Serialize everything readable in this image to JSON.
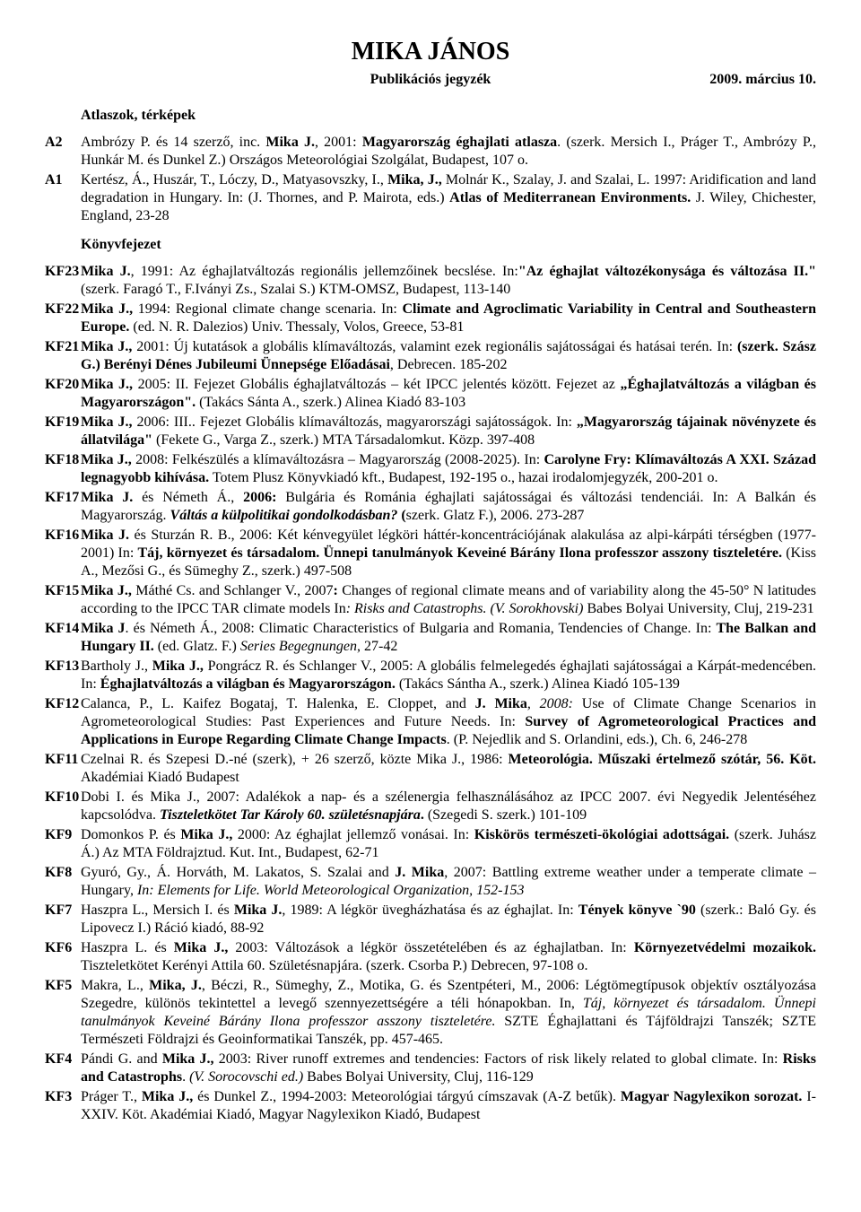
{
  "header": {
    "title": "MIKA JÁNOS",
    "subtitle": "Publikációs jegyzék",
    "date": "2009. március 10."
  },
  "section1": {
    "heading": "Atlaszok, térképek",
    "entries": [
      {
        "code": "A2",
        "html": "Ambrózy P. és 14 szerző, inc. <span class='b'>Mika J.</span>, 2001: <span class='b'>Magyarország éghajlati atlasza</span>. (szerk. Mersich I., Práger T., Ambrózy P., Hunkár M. és Dunkel Z.) Országos Meteorológiai Szolgálat, Budapest, 107 o."
      },
      {
        "code": "A1",
        "html": "Kertész, Á., Huszár, T., Lóczy, D., Matyasovszky, I., <span class='b'>Mika, J.,</span> Molnár K., Szalay, J. and Szalai, L. 1997: Aridification and land degradation in Hungary. In: (J. Thornes, and P. Mairota, eds.) <span class='b'>Atlas of Mediterranean Environments.</span> J. Wiley, Chichester, England, 23-28"
      }
    ]
  },
  "section2": {
    "heading": "Könyvfejezet",
    "entries": [
      {
        "code": "KF23",
        "html": "<span class='b'>Mika J.</span>, 1991: Az éghajlatváltozás regionális jellemzőinek becslése. In:<span class='b'>\"Az éghajlat változékonysága és változása II.\"</span> (szerk. Faragó T., F.Iványi Zs., Szalai S.) KTM-OMSZ, Budapest, 113-140"
      },
      {
        "code": "KF22",
        "html": "<span class='b'>Mika J.,</span> 1994: Regional climate change scenaria. In: <span class='b'>Climate and Agroclimatic Variability in Central and Southeastern Europe.</span> (ed. N. R. Dalezios) Univ. Thessaly, Volos, Greece, 53-81"
      },
      {
        "code": "KF21",
        "html": "<span class='b'>Mika J.,</span> 2001: Új kutatások a globális klímaváltozás, valamint ezek regionális sajátosságai és hatásai terén. In: <span class='b'>(szerk. Szász G.) Berényi Dénes Jubileumi Ünnepsége Előadásai</span>, Debrecen. 185-202"
      },
      {
        "code": "KF20",
        "html": "<span class='b'>Mika J.,</span> 2005: II. Fejezet Globális éghajlatváltozás – két IPCC jelentés között. Fejezet az <span class='b'>„Éghajlatváltozás a világban és Magyarországon\".</span> (Takács Sánta A., szerk.) Alinea Kiadó 83-103"
      },
      {
        "code": "KF19",
        "html": "<span class='b'>Mika J.,</span> 2006: III.. Fejezet Globális klímaváltozás, magyarországi sajátosságok. In: <span class='b'>„Magyarország tájainak növényzete és állatvilága\"</span> (Fekete G., Varga Z., szerk.) MTA Társadalomkut. Közp. 397-408"
      },
      {
        "code": "KF18",
        "html": "<span class='b'>Mika J.,</span> 2008: Felkészülés a klímaváltozásra – Magyarország (2008-2025). In: <span class='b'>Carolyne Fry:  Klímaváltozás A XXI. Század legnagyobb kihívása.</span> Totem Plusz Könyvkiadó kft., Budapest, 192-195 o., hazai irodalomjegyzék, 200-201 o."
      },
      {
        "code": "KF17",
        "html": "<span class='b'>Mika J.</span> és Németh Á., <span class='b'>2006:</span> Bulgária és Románia éghajlati sajátosságai és változási tendenciái. In: A Balkán és Magyarország. <span class='b i'>Váltás a külpolitikai gondolkodásban?</span> <span class='b'>(</span>szerk. Glatz F.), 2006. 273-287"
      },
      {
        "code": "KF16",
        "html": "<span class='b'>Mika J.</span> és Sturzán R. B., 2006: Két kénvegyület légköri háttér-koncentrációjának alakulása az alpi-kárpáti térségben (1977-2001) In: <span class='b'>Táj, környezet és társadalom. Ünnepi tanulmányok Keveiné Bárány Ilona professzor asszony tiszteletére.</span> (Kiss A., Mezősi G., és Sümeghy Z., szerk.) 497-508"
      },
      {
        "code": "KF15",
        "html": "<span class='b'>Mika J.,</span> Máthé Cs. and Schlanger V., 2007<span class='b'>:</span> Changes of regional climate means and of variability along the 45-50° N latitudes according to the IPCC TAR climate models In<span class='i'>: Risks and Catastrophs. (V. Sorokhovski)</span> Babes Bolyai University, Cluj, 219-231"
      },
      {
        "code": "KF14",
        "html": "<span class='b'>Mika J</span>. és Németh Á., 2008: Climatic Characteristics of Bulgaria and Romania, Tendencies of Change. In: <span class='b'>The Balkan and Hungary II.</span> (ed. Glatz. F.) <span class='i'>Series Begegnungen</span>, 27-42"
      },
      {
        "code": "KF13",
        "html": "Bartholy J., <span class='b'>Mika J.,</span> Pongrácz R. és Schlanger V., 2005: A globális felmelegedés éghajlati sajátosságai a Kárpát-medencében. In: <span class='b'>Éghajlatváltozás a világban és Magyarországon.</span> (Takács Sántha A., szerk.) Alinea Kiadó 105-139"
      },
      {
        "code": "KF12",
        "html": "Calanca, P., L. Kaifez Bogataj, T. Halenka, E. Cloppet, and <span class='b'>J. Mika</span><span class='i'>, 2008:</span> Use of Climate Change Scenarios in Agrometeorological Studies: Past Experiences and Future Needs. In: <span class='b'>Survey of Agrometeorological Practices and Applications in Europe Regarding Climate Change Impacts</span>. (P. Nejedlik and S. Orlandini, eds.), Ch. 6, 246-278"
      },
      {
        "code": "KF11",
        "html": "Czelnai R. és Szepesi D.-né (szerk), + 26 szerző, közte Mika J., 1986: <span class='b'>Meteorológia. Műszaki értelmező szótár, 56. Köt.</span> Akadémiai Kiadó Budapest"
      },
      {
        "code": "KF10",
        "html": "Dobi I. és Mika J., 2007: Adalékok a nap- és a szélenergia felhasználásához az IPCC 2007. évi Negyedik Jelentéséhez kapcsolódva. <span class='b i'>Tiszteletkötet Tar Károly 60. születésnapjára</span><span class='b'>.</span> (Szegedi S. szerk.) 101-109"
      },
      {
        "code": "KF9",
        "html": "Domonkos P. és <span class='b'>Mika J.,</span> 2000: Az éghajlat jellemző vonásai. In: <span class='b'>Kiskörös természeti-ökológiai adottságai.</span> (szerk. Juhász Á.) Az MTA Földrajztud. Kut. Int., Budapest, 62-71"
      },
      {
        "code": "KF8",
        "html": "Gyuró, Gy., Á. Horváth, M. Lakatos, S. Szalai and <span class='b'>J. Mika</span>, 2007: Battling extreme weather under a temperate climate – Hungary, <span class='i'>In: Elements for Life. World Meteorological Organization, 152-153</span>"
      },
      {
        "code": "KF7",
        "html": "Haszpra L., Mersich I. és <span class='b'>Mika J.</span>, 1989: A légkör üvegházhatása és az éghajlat. In: <span class='b'>Tények könyve `90</span> (szerk.: Baló Gy. és Lipovecz I.) Ráció kiadó, 88-92"
      },
      {
        "code": "KF6",
        "html": "Haszpra L. és <span class='b'>Mika J.,</span> 2003: Változások a légkör összetételében és az éghajlatban. In: <span class='b'>Környezetvédelmi mozaikok.</span> Tiszteletkötet Kerényi Attila 60. Születésnapjára. (szerk. Csorba P.) Debrecen, 97-108 o."
      },
      {
        "code": "KF5",
        "html": "Makra, L., <span class='b'>Mika, J.</span>, Béczi, R., Sümeghy, Z., Motika, G. és Szentpéteri, M., 2006: Légtömegtípusok objektív osztályozása Szegedre, különös tekintettel a levegő szennyezettségére a téli hónapokban. In, <span class='i'>Táj, környezet és társadalom. Ünnepi tanulmányok Keveiné Bárány Ilona professzor asszony tiszteletére.</span> SZTE Éghajlattani és Tájföldrajzi Tanszék; SZTE Természeti Földrajzi és Geoinformatikai Tanszék, pp. 457-465."
      },
      {
        "code": "KF4",
        "html": "Pándi G. and <span class='b'>Mika J.,</span> 2003: River runoff extremes and tendencies: Factors of risk likely related to global climate. In: <span class='b'>Risks and Catastrophs</span>. <span class='i'>(V. Sorocovschi ed.)</span> Babes Bolyai University, Cluj, 116-129"
      },
      {
        "code": "KF3",
        "html": "Práger T., <span class='b'>Mika J.,</span> és Dunkel Z., 1994-2003: Meteorológiai tárgyú címszavak (A-Z betűk). <span class='b'>Magyar Nagylexikon sorozat.</span> I-XXIV. Köt. Akadémiai Kiadó, Magyar Nagylexikon Kiadó, Budapest"
      }
    ]
  }
}
